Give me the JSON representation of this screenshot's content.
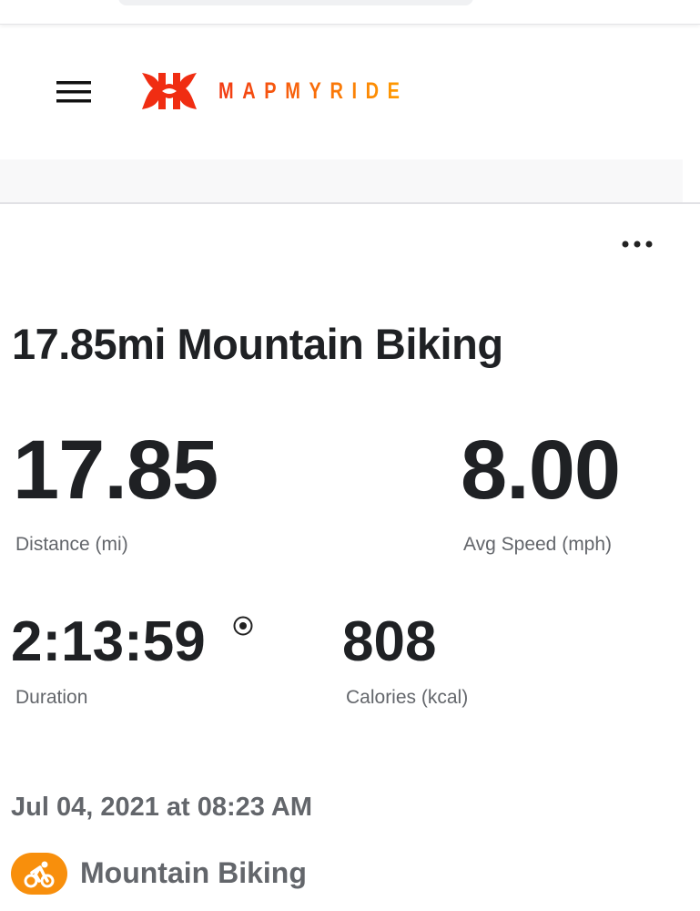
{
  "header": {
    "brand": "MAPMYRIDE",
    "logo": "under-armour-logo",
    "brand_colors": [
      "#f23a14",
      "#ff9f00"
    ]
  },
  "workout": {
    "title": "17.85mi Mountain Biking",
    "stats": {
      "distance": {
        "value": "17.85",
        "label": "Distance (mi)"
      },
      "avg_speed": {
        "value": "8.00",
        "label": "Avg Speed (mph)"
      },
      "duration": {
        "value": "2:13:59",
        "label": "Duration"
      },
      "calories": {
        "value": "808",
        "label": "Calories (kcal)"
      }
    },
    "date": "Jul 04, 2021 at 08:23 AM",
    "activity_type": "Mountain Biking",
    "activity_icon": "bicycle-icon",
    "accent": "#f88f0c"
  }
}
